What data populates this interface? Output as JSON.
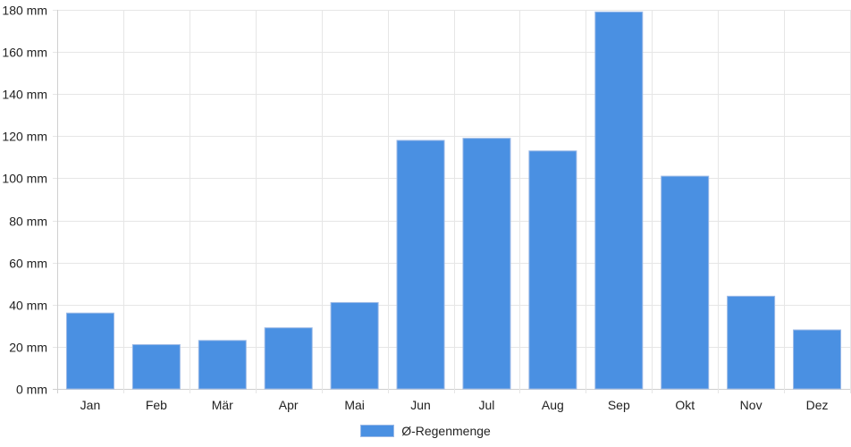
{
  "chart_data": {
    "type": "bar",
    "categories": [
      "Jan",
      "Feb",
      "Mär",
      "Apr",
      "Mai",
      "Jun",
      "Jul",
      "Aug",
      "Sep",
      "Okt",
      "Nov",
      "Dez"
    ],
    "series": [
      {
        "name": "Ø-Regenmenge",
        "values": [
          36,
          21,
          23,
          29,
          41,
          118,
          119,
          113,
          179,
          101,
          44,
          28
        ]
      }
    ],
    "y_tick_labels": [
      "0 mm",
      "20 mm",
      "40 mm",
      "60 mm",
      "80 mm",
      "100 mm",
      "120 mm",
      "140 mm",
      "160 mm",
      "180 mm"
    ],
    "ylim": [
      0,
      180
    ],
    "y_step": 20,
    "grid": true,
    "legend_position": "bottom-center",
    "bar_color": "#4a90e2"
  }
}
